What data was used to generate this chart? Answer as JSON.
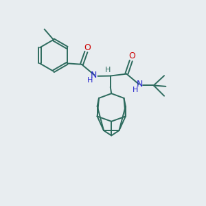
{
  "bg_color": "#e8edf0",
  "bond_color": "#2d6b5e",
  "N_color": "#2222cc",
  "O_color": "#cc0000",
  "figsize": [
    3.0,
    3.0
  ],
  "dpi": 100,
  "xlim": [
    0,
    10
  ],
  "ylim": [
    0,
    10
  ]
}
